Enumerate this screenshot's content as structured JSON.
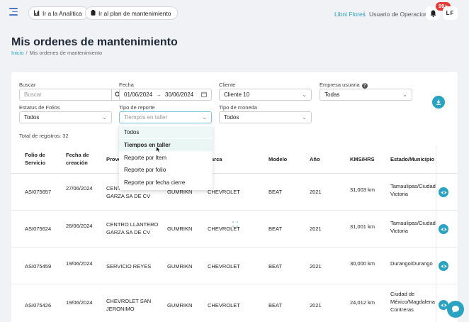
{
  "topbar": {
    "analytics_button": "Ir a la Analítica",
    "plan_button": "Ir al plan de mantenimiento",
    "user_name": "Libni Flores",
    "separator": "|",
    "user_role": "Usuario de Operaciones",
    "notifications_badge": "99+",
    "avatar_initials": "LF"
  },
  "page": {
    "title": "Mis ordenes de mantenimiento",
    "breadcrumb_home": "Inicio",
    "breadcrumb_sep": "/",
    "breadcrumb_current": "Mis ordenes de mantenimiento"
  },
  "filters": {
    "buscar_label": "Buscar",
    "buscar_placeholder": "Buscar",
    "fecha_label": "Fecha",
    "fecha_from": "01/06/2024",
    "fecha_arrow": "→",
    "fecha_to": "30/06/2024",
    "cliente_label": "Cliente",
    "cliente_value": "Cliente 10",
    "empresa_label": "Empresa usuaria",
    "empresa_value": "Todas",
    "estatus_label": "Estatus de Folios",
    "estatus_value": "Todos",
    "reporte_label": "Tipo de reporte",
    "reporte_placeholder": "Tiempos en taller",
    "moneda_label": "Tipo de moneda",
    "moneda_value": "Todos"
  },
  "total_text": "Total de registros: 32",
  "dropdown_options": [
    "Todos",
    "Tiempos en taller",
    "Reporte por Item",
    "Reporte por folio",
    "Reporte por fecha cierre"
  ],
  "table": {
    "headers": {
      "folio": [
        "Folio de",
        "Servicio"
      ],
      "fecha": [
        "Fecha de",
        "creación"
      ],
      "proveedor": "Prove",
      "marca": "arca",
      "modelo": "Modelo",
      "anio": "Año",
      "kms": "KMS/HRS",
      "estado": "Estado/Municipio"
    },
    "rows": [
      {
        "folio": "ASI075657",
        "fecha": "27/06/2024",
        "proveedor": [
          "CENT",
          "GARZA SA DE CV"
        ],
        "gum": "GUMRIKN",
        "marca": "CHEVROLET",
        "modelo": "BEAT",
        "anio": "2021",
        "kms": "31,003 km",
        "estado": [
          "Tamaulipas/Ciudad",
          "Victoria"
        ]
      },
      {
        "folio": "ASI075624",
        "fecha": "26/06/2024",
        "proveedor": [
          "CENTRO LLANTERO",
          "GARZA SA DE CV"
        ],
        "gum": "GUMRIKN",
        "marca": "CHEVROLET",
        "modelo": "BEAT",
        "anio": "2021",
        "kms": "31,001 km",
        "estado": [
          "Tamaulipas/Ciudad",
          "Victoria"
        ]
      },
      {
        "folio": "ASI075459",
        "fecha": "19/06/2024",
        "proveedor": [
          "SERVICIO REYES"
        ],
        "gum": "GUMRIKN",
        "marca": "CHEVROLET",
        "modelo": "BEAT",
        "anio": "2021",
        "kms": "30,000 km",
        "estado": [
          "Durango/Durango"
        ]
      },
      {
        "folio": "ASI075426",
        "fecha": "19/06/2024",
        "proveedor": [
          "CHEVROLET SAN",
          "JERONIMO"
        ],
        "gum": "GUMRIKN",
        "marca": "CHEVROLET",
        "modelo": "BEAT",
        "anio": "2021",
        "kms": "24,012 km",
        "estado": [
          "Ciudad de",
          "México/Magdalena",
          "Contreras"
        ]
      }
    ]
  },
  "colors": {
    "accent": "#2aa3c2",
    "badge": "#e53935",
    "background": "#f1f2f6"
  }
}
